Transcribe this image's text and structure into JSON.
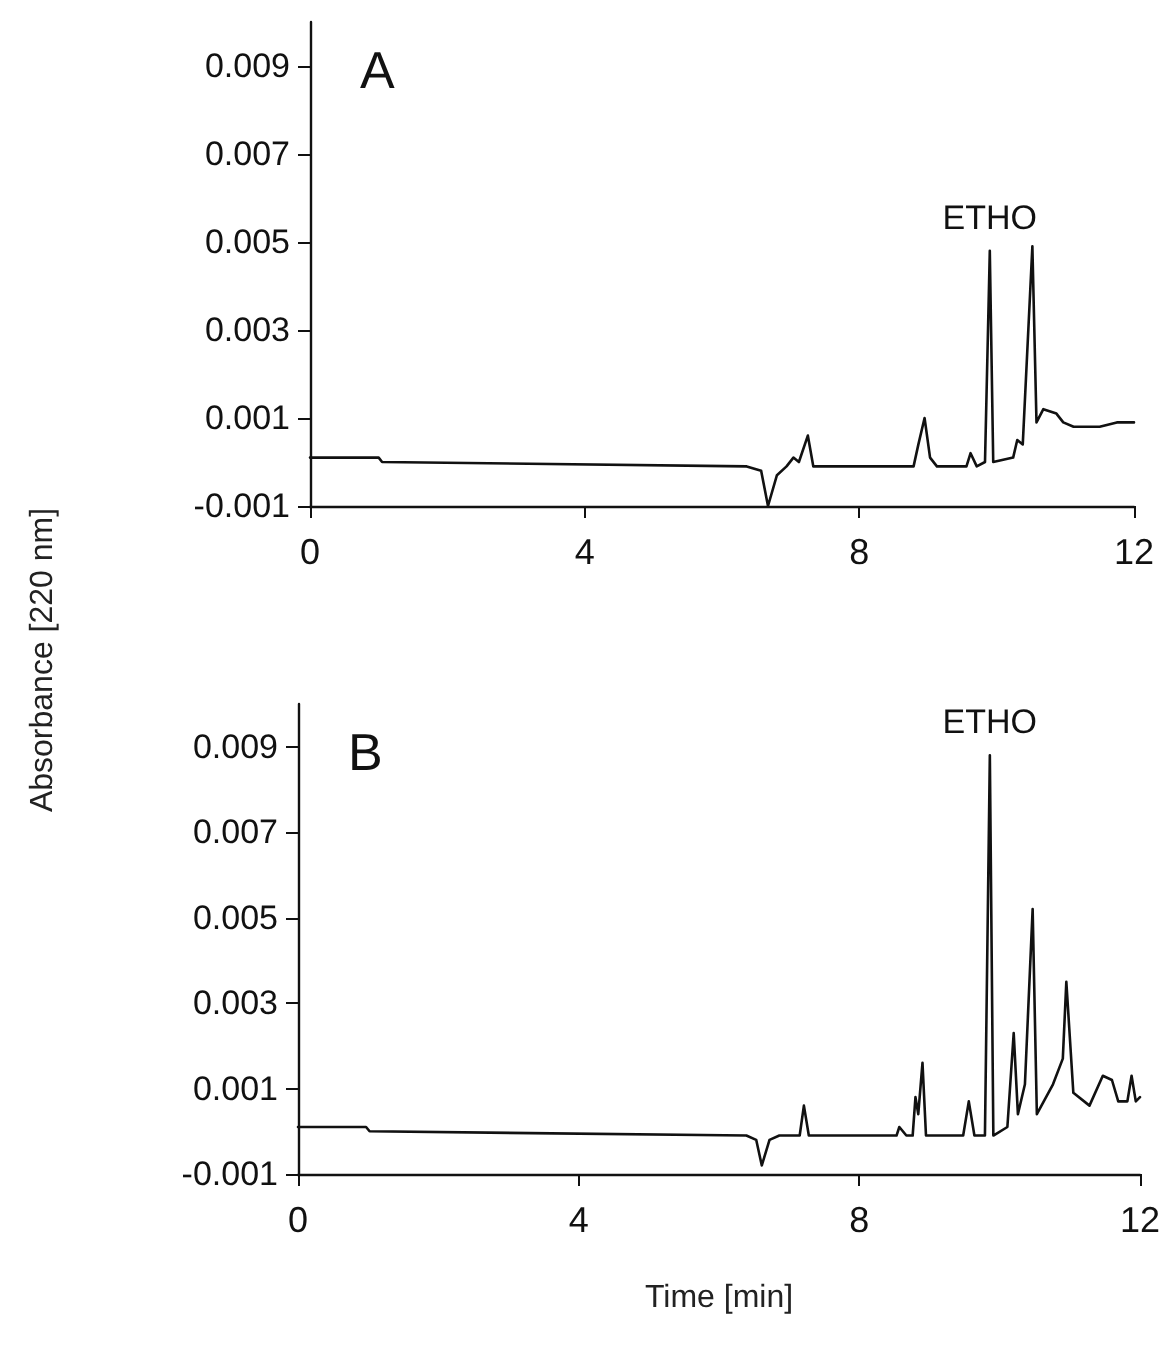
{
  "chart_data": [
    {
      "type": "line",
      "title": "A",
      "ylabel": "Absorbance [220 nm]",
      "xlim": [
        0,
        12
      ],
      "xticks": [
        0,
        4,
        8,
        12
      ],
      "ylim": [
        -0.001,
        0.01
      ],
      "yticks": [
        -0.001,
        0.001,
        0.003,
        0.005,
        0.007,
        0.009
      ],
      "marker": "none",
      "line_style": "solid",
      "annotations": [
        {
          "text": "ETHO",
          "x": 9.9,
          "y": 0.0048
        }
      ],
      "series": [
        {
          "color": "#111111",
          "x": [
            0,
            1.0,
            1.05,
            6.36,
            6.57,
            6.67,
            6.8,
            6.94,
            7.04,
            7.12,
            7.25,
            7.33,
            8.79,
            8.86,
            8.95,
            9.03,
            9.13,
            9.56,
            9.62,
            9.71,
            9.83,
            9.9,
            9.95,
            10.24,
            10.3,
            10.38,
            10.52,
            10.58,
            10.68,
            10.87,
            10.97,
            11.12,
            11.5,
            11.75,
            12
          ],
          "values": [
            0.0001,
            0.0001,
            0,
            -0.0001,
            -0.0002,
            -0.001,
            -0.0003,
            -0.0001,
            0.0001,
            0,
            0.0006,
            -0.0001,
            -0.0001,
            0.0004,
            0.001,
            0.0001,
            -0.0001,
            -0.0001,
            0.0002,
            -0.0001,
            0,
            0.0048,
            0,
            0.0001,
            0.0005,
            0.0004,
            0.0049,
            0.0009,
            0.0012,
            0.0011,
            0.0009,
            0.0008,
            0.0008,
            0.0009,
            0.0009
          ]
        }
      ]
    },
    {
      "type": "line",
      "title": "B",
      "xlabel": "Time [min]",
      "xlim": [
        0,
        12
      ],
      "xticks": [
        0,
        4,
        8,
        12
      ],
      "ylim": [
        -0.001,
        0.01
      ],
      "yticks": [
        -0.001,
        0.001,
        0.003,
        0.005,
        0.007,
        0.009
      ],
      "marker": "none",
      "line_style": "solid",
      "annotations": [
        {
          "text": "ETHO",
          "x": 9.86,
          "y": 0.0088
        }
      ],
      "series": [
        {
          "color": "#111111",
          "x": [
            0,
            0.97,
            1.02,
            6.39,
            6.53,
            6.61,
            6.72,
            6.86,
            7.15,
            7.21,
            7.28,
            8.53,
            8.57,
            8.67,
            8.76,
            8.8,
            8.84,
            8.9,
            8.95,
            9.48,
            9.56,
            9.64,
            9.79,
            9.86,
            9.91,
            10.11,
            10.2,
            10.26,
            10.36,
            10.47,
            10.53,
            10.76,
            10.9,
            10.95,
            11.05,
            11.28,
            11.47,
            11.6,
            11.69,
            11.82,
            11.88,
            11.94,
            12
          ],
          "values": [
            0.0001,
            0.0001,
            0,
            -0.0001,
            -0.0002,
            -0.0008,
            -0.0002,
            -0.0001,
            -0.0001,
            0.0006,
            -0.0001,
            -0.0001,
            0.0001,
            -0.0001,
            -0.0001,
            0.0008,
            0.0004,
            0.0016,
            -0.0001,
            -0.0001,
            0.0007,
            -0.0001,
            -0.0001,
            0.0088,
            -0.0001,
            0.0001,
            0.0023,
            0.0004,
            0.0011,
            0.0052,
            0.0004,
            0.0011,
            0.0017,
            0.0035,
            0.0009,
            0.0006,
            0.0013,
            0.0012,
            0.0007,
            0.0007,
            0.0013,
            0.0007,
            0.0008
          ]
        }
      ]
    }
  ]
}
